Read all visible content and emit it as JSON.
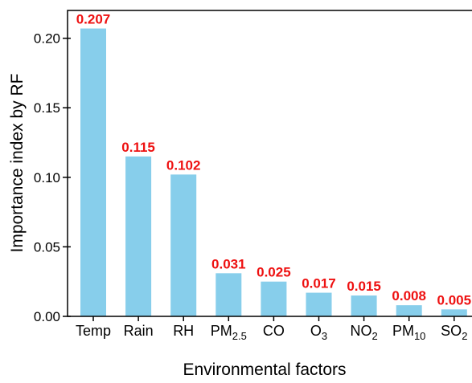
{
  "chart_data": {
    "type": "bar",
    "categories": [
      {
        "base": "Temp",
        "sub": ""
      },
      {
        "base": "Rain",
        "sub": ""
      },
      {
        "base": "RH",
        "sub": ""
      },
      {
        "base": "PM",
        "sub": "2.5"
      },
      {
        "base": "CO",
        "sub": ""
      },
      {
        "base": "O",
        "sub": "3"
      },
      {
        "base": "NO",
        "sub": "2"
      },
      {
        "base": "PM",
        "sub": "10"
      },
      {
        "base": "SO",
        "sub": "2"
      }
    ],
    "values": [
      0.207,
      0.115,
      0.102,
      0.031,
      0.025,
      0.017,
      0.015,
      0.008,
      0.005
    ],
    "data_labels": [
      "0.207",
      "0.115",
      "0.102",
      "0.031",
      "0.025",
      "0.017",
      "0.015",
      "0.008",
      "0.005"
    ],
    "xlabel": "Environmental factors",
    "ylabel": "Importance index by RF",
    "ylim": [
      0,
      0.22
    ],
    "yticks": [
      "0.00",
      "0.05",
      "0.10",
      "0.15",
      "0.20"
    ],
    "ytick_values": [
      0,
      0.05,
      0.1,
      0.15,
      0.2
    ],
    "grid": false,
    "colors": {
      "bar": "#87ceeb",
      "data_label": "#ee1111",
      "axis": "#000000"
    }
  }
}
